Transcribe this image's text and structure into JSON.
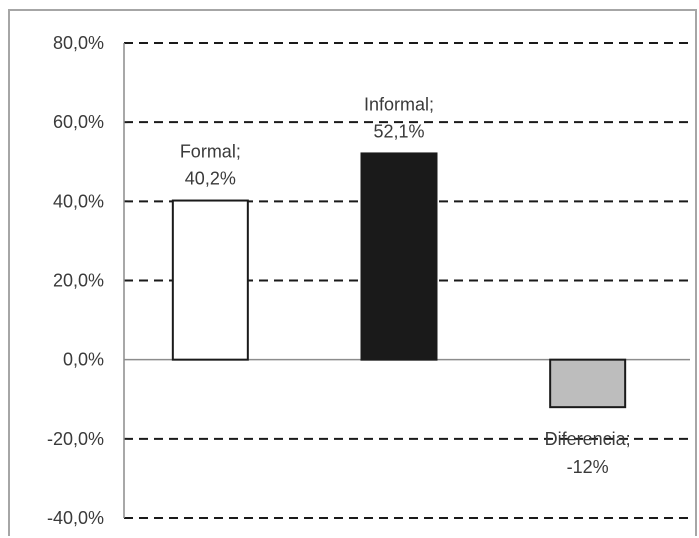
{
  "chart_data": {
    "type": "bar",
    "categories": [
      "Formal",
      "Informal",
      "Diferencia"
    ],
    "values": [
      40.2,
      52.1,
      -12
    ],
    "data_labels": [
      [
        "Formal;",
        "40,2%"
      ],
      [
        "Informal;",
        "52,1%"
      ],
      [
        "Diferencia;",
        "-12%"
      ]
    ],
    "colors": [
      "#ffffff",
      "#1a1a1a",
      "#bdbdbd"
    ],
    "bar_stroke": "#1a1a1a",
    "ylim": [
      -40,
      80
    ],
    "yticks": [
      80,
      60,
      40,
      20,
      0,
      -20,
      -40
    ],
    "ytick_labels": [
      "80,0%",
      "60,0%",
      "40,0%",
      "20,0%",
      "0,0%",
      "-20,0%",
      "-40,0%"
    ],
    "grid": "dashed horizontal",
    "title": "",
    "xlabel": "",
    "ylabel": ""
  }
}
